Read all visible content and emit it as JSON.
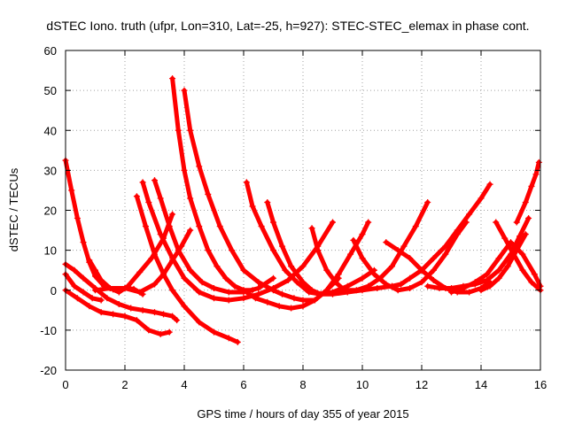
{
  "chart_data": {
    "type": "scatter",
    "title": "dSTEC Iono. truth (ufpr, Lon=310, Lat=-25, h=927): STEC-STEC_elemax in phase cont.",
    "xlabel": "GPS time / hours of day 355 of year 2015",
    "ylabel": "dSTEC  / TECUs",
    "xlim": [
      0,
      16
    ],
    "ylim": [
      -20,
      60
    ],
    "xticks": [
      0,
      2,
      4,
      6,
      8,
      10,
      12,
      14,
      16
    ],
    "yticks": [
      -20,
      -10,
      0,
      10,
      20,
      30,
      40,
      50,
      60
    ],
    "grid": true,
    "legend": "none",
    "marker": "plus",
    "color": "#ff0000",
    "series": [
      {
        "x": [
          0.0,
          0.2,
          0.4,
          0.6,
          0.8,
          1.0,
          1.3,
          1.6,
          2.0,
          2.3,
          2.6
        ],
        "y": [
          32.5,
          25,
          18,
          12,
          7,
          3.5,
          1,
          0.2,
          0.5,
          0.3,
          -1
        ]
      },
      {
        "x": [
          0.0,
          0.3,
          0.6,
          1.0,
          1.4,
          1.8,
          2.2,
          2.6,
          3.0,
          3.3,
          3.6,
          3.75
        ],
        "y": [
          6.5,
          5,
          3,
          0.5,
          -2,
          -3.5,
          -4.5,
          -5,
          -5.5,
          -6,
          -6.5,
          -7.5
        ]
      },
      {
        "x": [
          0.0,
          0.3,
          0.6,
          0.9,
          1.2
        ],
        "y": [
          4,
          1,
          -0.5,
          -2,
          -2.5
        ]
      },
      {
        "x": [
          0.0,
          0.4,
          0.8,
          1.2,
          1.6,
          2.0,
          2.4,
          2.8,
          3.2,
          3.5
        ],
        "y": [
          0,
          -2,
          -4,
          -5.5,
          -6,
          -6.5,
          -7.5,
          -10,
          -11,
          -10.5
        ]
      },
      {
        "x": [
          0.8,
          1.0,
          1.2,
          1.5,
          1.8,
          2.1,
          2.5,
          2.9,
          3.3,
          3.6
        ],
        "y": [
          7.5,
          5,
          2.5,
          0.5,
          -0.5,
          1,
          4.5,
          8,
          13,
          19
        ]
      },
      {
        "x": [
          2.4,
          2.7,
          3.0,
          3.3,
          3.6,
          4.0,
          4.5,
          5.0,
          5.5,
          5.8
        ],
        "y": [
          23.5,
          16,
          9,
          4,
          0,
          -4,
          -8,
          -10.5,
          -12,
          -13
        ]
      },
      {
        "x": [
          1.0,
          1.5,
          2.0,
          2.5,
          3.0,
          3.3,
          3.6,
          3.9,
          4.2
        ],
        "y": [
          0,
          0.5,
          0.5,
          -0.5,
          1.5,
          4,
          7.5,
          11,
          15
        ]
      },
      {
        "x": [
          2.6,
          2.8,
          3.2,
          3.6,
          4.0,
          4.5,
          5.0,
          5.5,
          6.0,
          6.5,
          7.0,
          7.5,
          8.0,
          8.5,
          9.0
        ],
        "y": [
          27,
          22,
          14,
          8,
          3,
          -0.5,
          -2,
          -2.5,
          -2,
          -1,
          0.5,
          2.5,
          6,
          11,
          17
        ]
      },
      {
        "x": [
          3.0,
          3.2,
          3.5,
          3.8,
          4.2,
          4.6,
          5.0,
          5.5,
          6.0,
          6.5,
          7.0
        ],
        "y": [
          27.5,
          23,
          16,
          10,
          5,
          2,
          0.5,
          -0.5,
          -0.5,
          0.5,
          3
        ]
      },
      {
        "x": [
          3.6,
          3.8,
          4.0,
          4.2,
          4.5,
          4.8,
          5.1,
          5.4,
          5.7,
          6.0,
          6.3
        ],
        "y": [
          53,
          40,
          30,
          23,
          16,
          10,
          6,
          3,
          1,
          0,
          0
        ]
      },
      {
        "x": [
          4.0,
          4.2,
          4.5,
          4.8,
          5.2,
          5.6,
          6.0,
          6.5,
          7.0,
          7.3,
          7.7,
          8.0,
          8.4,
          8.8,
          9.2
        ],
        "y": [
          50,
          40,
          31,
          24,
          16,
          10,
          5,
          2,
          0,
          -1,
          -2,
          -2.5,
          -2.5,
          0,
          3
        ]
      },
      {
        "x": [
          6.1,
          6.3,
          6.6,
          7.0,
          7.4,
          7.8,
          8.2,
          8.6,
          9.0,
          9.5,
          10.0,
          10.5,
          11.0
        ],
        "y": [
          27,
          21,
          16,
          10,
          5,
          2,
          -0.5,
          -1,
          -1,
          -0.5,
          0,
          0.5,
          1
        ]
      },
      {
        "x": [
          6.8,
          7.0,
          7.3,
          7.6,
          8.0,
          8.3,
          8.6,
          9.0,
          9.5,
          10.0,
          10.4
        ],
        "y": [
          22,
          17,
          11,
          6,
          2,
          0,
          -1,
          -0.5,
          1,
          3,
          5
        ]
      },
      {
        "x": [
          6.0,
          6.4,
          6.8,
          7.2,
          7.6,
          8.0,
          8.4,
          8.8,
          9.2,
          9.6,
          10.0,
          10.2
        ],
        "y": [
          0,
          -2,
          -3,
          -4,
          -4.5,
          -4,
          -2.5,
          0,
          4,
          9,
          14,
          17
        ]
      },
      {
        "x": [
          8.3,
          8.5,
          8.8,
          9.1,
          9.4,
          9.8,
          10.2,
          10.6,
          11.0,
          11.4,
          11.8,
          12.2
        ],
        "y": [
          15.5,
          10,
          5,
          2,
          0,
          0,
          1,
          3,
          6,
          11,
          16,
          22
        ]
      },
      {
        "x": [
          9.7,
          10.0,
          10.4,
          10.8,
          11.2,
          11.6,
          12.0,
          12.4,
          12.8,
          13.2,
          13.5
        ],
        "y": [
          12.5,
          8,
          4,
          1.5,
          0,
          0.5,
          2,
          5,
          9,
          14,
          17
        ]
      },
      {
        "x": [
          10.8,
          11.2,
          11.6,
          12.0,
          12.4,
          12.8,
          13.2,
          13.6,
          14.0,
          14.3
        ],
        "y": [
          12,
          10,
          8,
          5,
          2.5,
          0.5,
          -0.5,
          -0.5,
          0.5,
          2
        ]
      },
      {
        "x": [
          11.0,
          11.3,
          11.6,
          12.0,
          12.4,
          12.8,
          13.2,
          13.6,
          14.0,
          14.3
        ],
        "y": [
          1,
          1.5,
          3,
          5,
          8,
          11,
          15,
          19,
          23,
          26.5
        ]
      },
      {
        "x": [
          12.2,
          12.6,
          13.0,
          13.4,
          13.8,
          14.2,
          14.6,
          15.0,
          15.3,
          15.6
        ],
        "y": [
          1,
          0.5,
          0.5,
          1,
          1.5,
          2.5,
          5,
          9,
          13.5,
          18
        ]
      },
      {
        "x": [
          13.0,
          13.4,
          13.8,
          14.2,
          14.6,
          15.0,
          15.4,
          15.8,
          16.0
        ],
        "y": [
          -0.5,
          0.5,
          2,
          4,
          8,
          12,
          9,
          4,
          1
        ]
      },
      {
        "x": [
          14.5,
          14.8,
          15.1,
          15.4,
          15.7,
          16.0
        ],
        "y": [
          17,
          13,
          9,
          5,
          2,
          0
        ]
      },
      {
        "x": [
          15.2,
          15.5,
          15.7,
          15.85,
          15.95
        ],
        "y": [
          17,
          22,
          26,
          29,
          32
        ]
      },
      {
        "x": [
          14.0,
          14.3,
          14.6,
          14.9,
          15.2,
          15.5
        ],
        "y": [
          0,
          1,
          3,
          6,
          10,
          14
        ]
      }
    ]
  }
}
